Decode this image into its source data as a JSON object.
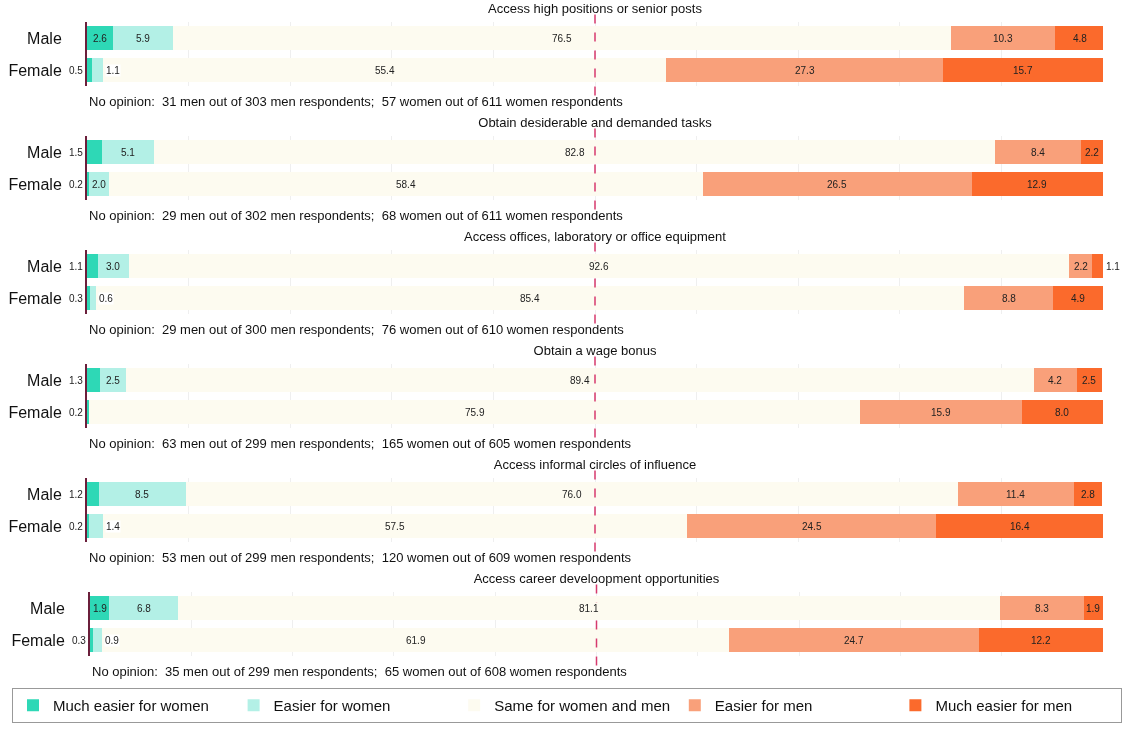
{
  "chart_data": [
    {
      "type": "bar",
      "orientation": "horizontal",
      "stacked": true,
      "title": "Access high positions or senior posts",
      "categories": [
        "Male",
        "Female"
      ],
      "xlim": [
        0,
        100
      ],
      "xticks": [
        {
          "value": 0,
          "label": null
        },
        {
          "value": 10,
          "label": null
        },
        {
          "value": 20,
          "label": null
        },
        {
          "value": 30,
          "label": null
        },
        {
          "value": 40,
          "label": null
        },
        {
          "value": 50,
          "label": null
        },
        {
          "value": 60,
          "label": null
        },
        {
          "value": 70,
          "label": null
        },
        {
          "value": 80,
          "label": null
        },
        {
          "value": 90,
          "label": null
        }
      ],
      "grid": "x",
      "tick_labels": "y",
      "legend": false,
      "series": [
        {
          "color": "#2ed8b6",
          "values": [
            2.6,
            0.5
          ],
          "value_labels": [
            "2.6",
            "0.5"
          ]
        },
        {
          "color": "#b3f0e6",
          "values": [
            5.9,
            1.1
          ],
          "value_labels": [
            "5.9",
            "1.1"
          ]
        },
        {
          "color": "#fdfbf0",
          "values": [
            76.5,
            55.4
          ],
          "value_labels": [
            "76.5",
            "55.4"
          ]
        },
        {
          "color": "#f9a07a",
          "values": [
            10.3,
            27.3
          ],
          "value_labels": [
            "10.3",
            "27.3"
          ]
        },
        {
          "color": "#fb6a2c",
          "values": [
            4.8,
            15.7
          ],
          "value_labels": [
            "4.8",
            "15.7"
          ]
        }
      ],
      "ref_lines": [
        {
          "axis": "x",
          "value": 50,
          "color": "#d63a6e",
          "line_style": "dashed"
        }
      ],
      "annotations": [
        "No opinion:  31 men out of 303 men respondents;  57 women out of 611 women respondents"
      ]
    },
    {
      "type": "bar",
      "orientation": "horizontal",
      "stacked": true,
      "title": "Obtain desiderable and demanded tasks",
      "categories": [
        "Male",
        "Female"
      ],
      "xlim": [
        0,
        100
      ],
      "xticks": [
        {
          "value": 0,
          "label": null
        },
        {
          "value": 10,
          "label": null
        },
        {
          "value": 20,
          "label": null
        },
        {
          "value": 30,
          "label": null
        },
        {
          "value": 40,
          "label": null
        },
        {
          "value": 50,
          "label": null
        },
        {
          "value": 60,
          "label": null
        },
        {
          "value": 70,
          "label": null
        },
        {
          "value": 80,
          "label": null
        },
        {
          "value": 90,
          "label": null
        }
      ],
      "grid": "x",
      "tick_labels": "y",
      "legend": false,
      "series": [
        {
          "color": "#2ed8b6",
          "values": [
            1.5,
            0.2
          ],
          "value_labels": [
            "1.5",
            "0.2"
          ]
        },
        {
          "color": "#b3f0e6",
          "values": [
            5.1,
            2.0
          ],
          "value_labels": [
            "5.1",
            "2.0"
          ]
        },
        {
          "color": "#fdfbf0",
          "values": [
            82.8,
            58.4
          ],
          "value_labels": [
            "82.8",
            "58.4"
          ]
        },
        {
          "color": "#f9a07a",
          "values": [
            8.4,
            26.5
          ],
          "value_labels": [
            "8.4",
            "26.5"
          ]
        },
        {
          "color": "#fb6a2c",
          "values": [
            2.2,
            12.9
          ],
          "value_labels": [
            "2.2",
            "12.9"
          ]
        }
      ],
      "ref_lines": [
        {
          "axis": "x",
          "value": 50,
          "color": "#d63a6e",
          "line_style": "dashed"
        }
      ],
      "annotations": [
        "No opinion:  29 men out of 302 men respondents;  68 women out of 611 women respondents"
      ]
    },
    {
      "type": "bar",
      "orientation": "horizontal",
      "stacked": true,
      "title": "Access offices, laboratory or office equipment",
      "categories": [
        "Male",
        "Female"
      ],
      "xlim": [
        0,
        100
      ],
      "xticks": [
        {
          "value": 0,
          "label": null
        },
        {
          "value": 10,
          "label": null
        },
        {
          "value": 20,
          "label": null
        },
        {
          "value": 30,
          "label": null
        },
        {
          "value": 40,
          "label": null
        },
        {
          "value": 50,
          "label": null
        },
        {
          "value": 60,
          "label": null
        },
        {
          "value": 70,
          "label": null
        },
        {
          "value": 80,
          "label": null
        },
        {
          "value": 90,
          "label": null
        }
      ],
      "grid": "x",
      "tick_labels": "y",
      "legend": false,
      "series": [
        {
          "color": "#2ed8b6",
          "values": [
            1.1,
            0.3
          ],
          "value_labels": [
            "1.1",
            "0.3"
          ]
        },
        {
          "color": "#b3f0e6",
          "values": [
            3.0,
            0.6
          ],
          "value_labels": [
            "3.0",
            "0.6"
          ]
        },
        {
          "color": "#fdfbf0",
          "values": [
            92.6,
            85.4
          ],
          "value_labels": [
            "92.6",
            "85.4"
          ]
        },
        {
          "color": "#f9a07a",
          "values": [
            2.2,
            8.8
          ],
          "value_labels": [
            "2.2",
            "8.8"
          ]
        },
        {
          "color": "#fb6a2c",
          "values": [
            1.1,
            4.9
          ],
          "value_labels": [
            "1.1",
            "4.9"
          ]
        }
      ],
      "ref_lines": [
        {
          "axis": "x",
          "value": 50,
          "color": "#d63a6e",
          "line_style": "dashed"
        }
      ],
      "annotations": [
        "No opinion:  29 men out of 300 men respondents;  76 women out of 610 women respondents"
      ]
    },
    {
      "type": "bar",
      "orientation": "horizontal",
      "stacked": true,
      "title": "Obtain a wage bonus",
      "categories": [
        "Male",
        "Female"
      ],
      "xlim": [
        0,
        100
      ],
      "xticks": [
        {
          "value": 0,
          "label": null
        },
        {
          "value": 10,
          "label": null
        },
        {
          "value": 20,
          "label": null
        },
        {
          "value": 30,
          "label": null
        },
        {
          "value": 40,
          "label": null
        },
        {
          "value": 50,
          "label": null
        },
        {
          "value": 60,
          "label": null
        },
        {
          "value": 70,
          "label": null
        },
        {
          "value": 80,
          "label": null
        },
        {
          "value": 90,
          "label": null
        }
      ],
      "grid": "x",
      "tick_labels": "y",
      "legend": false,
      "series": [
        {
          "color": "#2ed8b6",
          "values": [
            1.3,
            0.2
          ],
          "value_labels": [
            "1.3",
            "0.2"
          ]
        },
        {
          "color": "#b3f0e6",
          "values": [
            2.5,
            null
          ],
          "value_labels": [
            "2.5",
            null
          ]
        },
        {
          "color": "#fdfbf0",
          "values": [
            89.4,
            75.9
          ],
          "value_labels": [
            "89.4",
            "75.9"
          ]
        },
        {
          "color": "#f9a07a",
          "values": [
            4.2,
            15.9
          ],
          "value_labels": [
            "4.2",
            "15.9"
          ]
        },
        {
          "color": "#fb6a2c",
          "values": [
            2.5,
            8.0
          ],
          "value_labels": [
            "2.5",
            "8.0"
          ]
        }
      ],
      "ref_lines": [
        {
          "axis": "x",
          "value": 50,
          "color": "#d63a6e",
          "line_style": "dashed"
        }
      ],
      "annotations": [
        "No opinion:  63 men out of 299 men respondents;  165 women out of 605 women respondents"
      ]
    },
    {
      "type": "bar",
      "orientation": "horizontal",
      "stacked": true,
      "title": "Access informal circles of influence",
      "categories": [
        "Male",
        "Female"
      ],
      "xlim": [
        0,
        100
      ],
      "xticks": [
        {
          "value": 0,
          "label": null
        },
        {
          "value": 10,
          "label": null
        },
        {
          "value": 20,
          "label": null
        },
        {
          "value": 30,
          "label": null
        },
        {
          "value": 40,
          "label": null
        },
        {
          "value": 50,
          "label": null
        },
        {
          "value": 60,
          "label": null
        },
        {
          "value": 70,
          "label": null
        },
        {
          "value": 80,
          "label": null
        },
        {
          "value": 90,
          "label": null
        }
      ],
      "grid": "x",
      "tick_labels": "y",
      "legend": false,
      "series": [
        {
          "color": "#2ed8b6",
          "values": [
            1.2,
            0.2
          ],
          "value_labels": [
            "1.2",
            "0.2"
          ]
        },
        {
          "color": "#b3f0e6",
          "values": [
            8.5,
            1.4
          ],
          "value_labels": [
            "8.5",
            "1.4"
          ]
        },
        {
          "color": "#fdfbf0",
          "values": [
            76.0,
            57.5
          ],
          "value_labels": [
            "76.0",
            "57.5"
          ]
        },
        {
          "color": "#f9a07a",
          "values": [
            11.4,
            24.5
          ],
          "value_labels": [
            "11.4",
            "24.5"
          ]
        },
        {
          "color": "#fb6a2c",
          "values": [
            2.8,
            16.4
          ],
          "value_labels": [
            "2.8",
            "16.4"
          ]
        }
      ],
      "ref_lines": [
        {
          "axis": "x",
          "value": 50,
          "color": "#d63a6e",
          "line_style": "dashed"
        }
      ],
      "annotations": [
        "No opinion:  53 men out of 299 men respondents;  120 women out of 609 women respondents"
      ]
    },
    {
      "type": "bar",
      "orientation": "horizontal",
      "stacked": true,
      "title": "Access career develoopment opportunities",
      "categories": [
        "Male",
        "Female"
      ],
      "xlim": [
        0,
        100
      ],
      "xticks": [
        {
          "value": 0,
          "label": null
        },
        {
          "value": 10,
          "label": null
        },
        {
          "value": 20,
          "label": null
        },
        {
          "value": 30,
          "label": null
        },
        {
          "value": 40,
          "label": null
        },
        {
          "value": 50,
          "label": null
        },
        {
          "value": 60,
          "label": null
        },
        {
          "value": 70,
          "label": null
        },
        {
          "value": 80,
          "label": null
        },
        {
          "value": 90,
          "label": null
        }
      ],
      "grid": "x",
      "tick_labels": "y",
      "legend": "bottom",
      "series": [
        {
          "name": "Much easier for women",
          "color": "#2ed8b6",
          "values": [
            1.9,
            0.3
          ],
          "value_labels": [
            "1.9",
            "0.3"
          ]
        },
        {
          "name": "Easier for women",
          "color": "#b3f0e6",
          "values": [
            6.8,
            0.9
          ],
          "value_labels": [
            "6.8",
            "0.9"
          ]
        },
        {
          "name": "Same for women and men",
          "color": "#fdfbf0",
          "values": [
            81.1,
            61.9
          ],
          "value_labels": [
            "81.1",
            "61.9"
          ]
        },
        {
          "name": "Easier for men",
          "color": "#f9a07a",
          "values": [
            8.3,
            24.7
          ],
          "value_labels": [
            "8.3",
            "24.7"
          ]
        },
        {
          "name": "Much easier for men",
          "color": "#fb6a2c",
          "values": [
            1.9,
            12.2
          ],
          "value_labels": [
            "1.9",
            "12.2"
          ]
        }
      ],
      "ref_lines": [
        {
          "axis": "x",
          "value": 50,
          "color": "#d63a6e",
          "line_style": "dashed"
        }
      ],
      "annotations": [
        "No opinion:  35 men out of 299 men respondents;  65 women out of 608 women respondents"
      ]
    }
  ]
}
